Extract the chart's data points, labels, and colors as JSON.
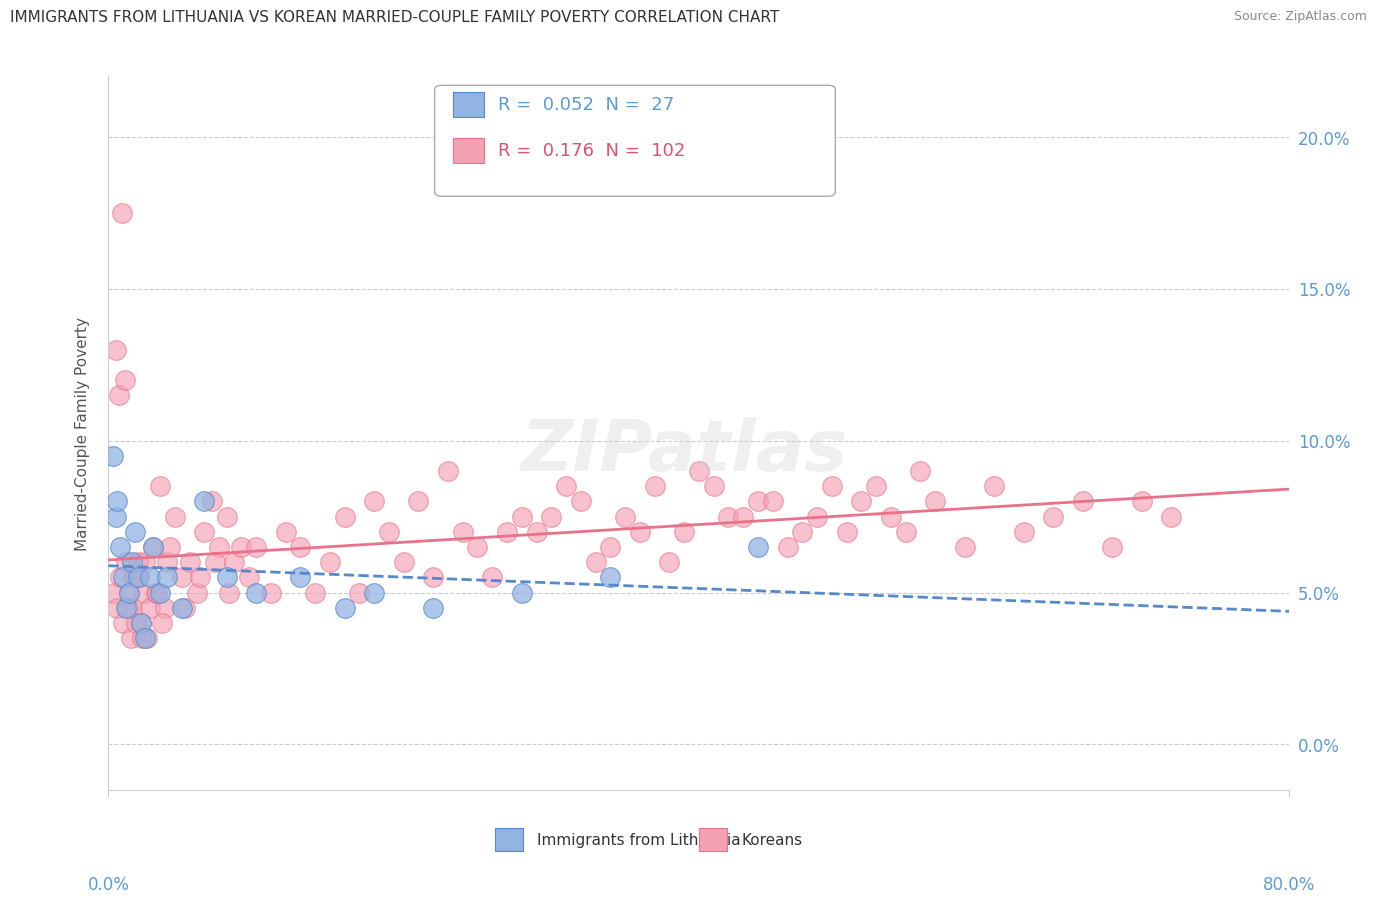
{
  "title": "IMMIGRANTS FROM LITHUANIA VS KOREAN MARRIED-COUPLE FAMILY POVERTY CORRELATION CHART",
  "source": "Source: ZipAtlas.com",
  "ylabel": "Married-Couple Family Poverty",
  "xlim": [
    0.0,
    80.0
  ],
  "ylim": [
    -1.5,
    22.0
  ],
  "legend_blue_R": "0.052",
  "legend_blue_N": "27",
  "legend_pink_R": "0.176",
  "legend_pink_N": "102",
  "legend_label_blue": "Immigrants from Lithuania",
  "legend_label_pink": "Koreans",
  "blue_color": "#92b4e3",
  "pink_color": "#f4a0b5",
  "trendline_blue_color": "#5588cc",
  "trendline_pink_color": "#e8728a",
  "ytick_labels": [
    "0.0%",
    "5.0%",
    "10.0%",
    "15.0%",
    "20.0%"
  ],
  "ytick_values": [
    0.0,
    5.0,
    10.0,
    15.0,
    20.0
  ],
  "blue_x": [
    0.3,
    0.5,
    0.6,
    0.8,
    1.0,
    1.2,
    1.4,
    1.6,
    1.8,
    2.0,
    2.2,
    2.5,
    2.8,
    3.0,
    3.5,
    4.0,
    5.0,
    6.5,
    8.0,
    10.0,
    13.0,
    16.0,
    18.0,
    22.0,
    28.0,
    34.0,
    44.0
  ],
  "blue_y": [
    9.5,
    7.5,
    8.0,
    6.5,
    5.5,
    4.5,
    5.0,
    6.0,
    7.0,
    5.5,
    4.0,
    3.5,
    5.5,
    6.5,
    5.0,
    5.5,
    4.5,
    8.0,
    5.5,
    5.0,
    5.5,
    4.5,
    5.0,
    4.5,
    5.0,
    5.5,
    6.5
  ],
  "pink_x": [
    0.4,
    0.6,
    0.8,
    1.0,
    1.2,
    1.4,
    1.6,
    1.8,
    2.0,
    2.2,
    2.4,
    2.6,
    2.8,
    3.0,
    3.2,
    3.5,
    3.8,
    4.0,
    4.5,
    5.0,
    5.5,
    6.0,
    6.5,
    7.0,
    7.5,
    8.0,
    8.5,
    9.0,
    9.5,
    10.0,
    11.0,
    12.0,
    13.0,
    14.0,
    15.0,
    16.0,
    17.0,
    18.0,
    19.0,
    20.0,
    21.0,
    22.0,
    23.0,
    24.0,
    25.0,
    26.0,
    27.0,
    28.0,
    30.0,
    32.0,
    34.0,
    36.0,
    38.0,
    40.0,
    42.0,
    44.0,
    46.0,
    48.0,
    50.0,
    52.0,
    54.0,
    56.0,
    58.0,
    60.0,
    62.0,
    64.0,
    66.0,
    68.0,
    70.0,
    72.0,
    0.5,
    0.7,
    0.9,
    1.1,
    1.3,
    1.5,
    1.7,
    1.9,
    2.1,
    2.3,
    2.5,
    3.3,
    3.6,
    4.2,
    5.2,
    6.2,
    7.2,
    8.2,
    29.0,
    31.0,
    33.0,
    35.0,
    37.0,
    39.0,
    41.0,
    43.0,
    45.0,
    47.0,
    49.0,
    51.0,
    53.0,
    55.0
  ],
  "pink_y": [
    5.0,
    4.5,
    5.5,
    4.0,
    6.0,
    5.0,
    4.5,
    5.5,
    6.0,
    4.0,
    5.0,
    3.5,
    4.5,
    6.5,
    5.0,
    8.5,
    4.5,
    6.0,
    7.5,
    5.5,
    6.0,
    5.0,
    7.0,
    8.0,
    6.5,
    7.5,
    6.0,
    6.5,
    5.5,
    6.5,
    5.0,
    7.0,
    6.5,
    5.0,
    6.0,
    7.5,
    5.0,
    8.0,
    7.0,
    6.0,
    8.0,
    5.5,
    9.0,
    7.0,
    6.5,
    5.5,
    7.0,
    7.5,
    7.5,
    8.0,
    6.5,
    7.0,
    6.0,
    9.0,
    7.5,
    8.0,
    6.5,
    7.5,
    7.0,
    8.5,
    7.0,
    8.0,
    6.5,
    8.5,
    7.0,
    7.5,
    8.0,
    6.5,
    8.0,
    7.5,
    13.0,
    11.5,
    17.5,
    12.0,
    4.5,
    3.5,
    5.5,
    4.0,
    5.5,
    3.5,
    6.0,
    5.0,
    4.0,
    6.5,
    4.5,
    5.5,
    6.0,
    5.0,
    7.0,
    8.5,
    6.0,
    7.5,
    8.5,
    7.0,
    8.5,
    7.5,
    8.0,
    7.0,
    8.5,
    8.0,
    7.5,
    9.0
  ]
}
